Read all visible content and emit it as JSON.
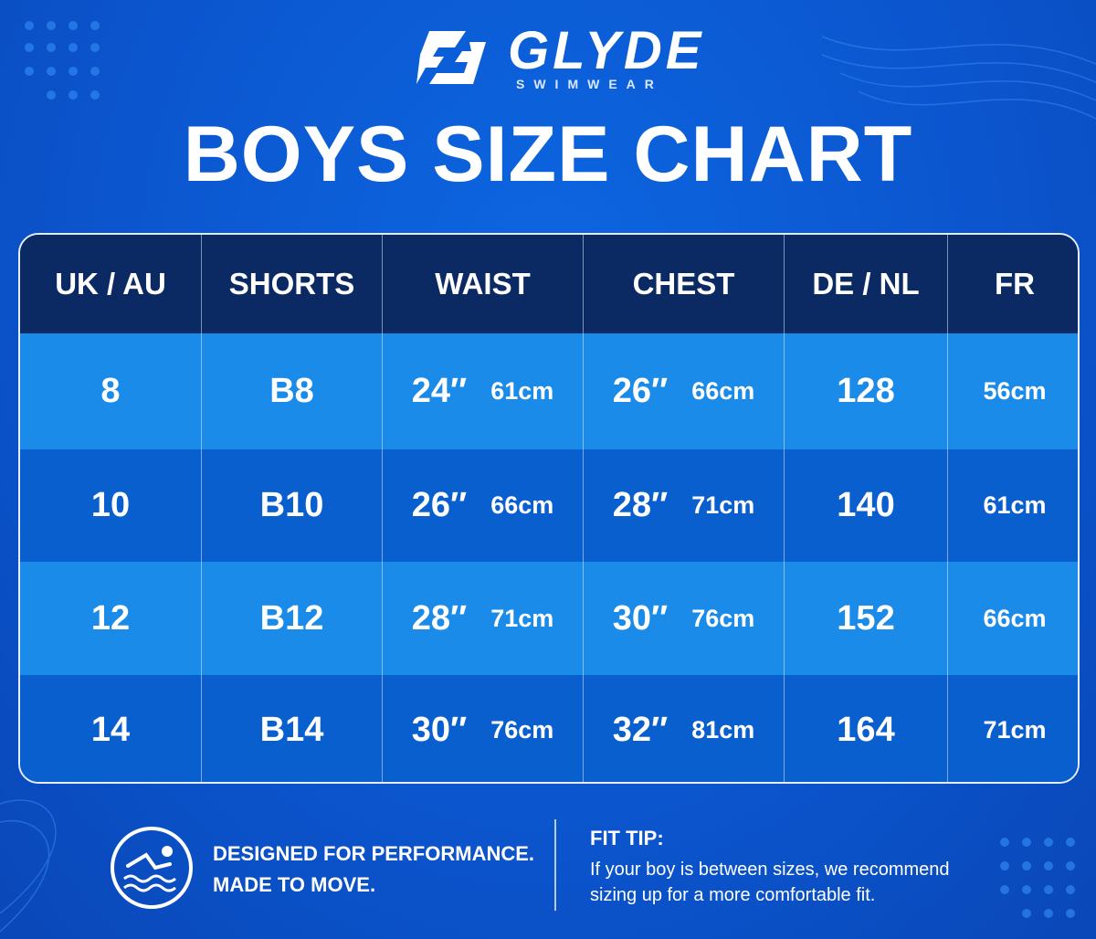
{
  "brand": {
    "name": "GLYDE",
    "tagline": "SWIMWEAR"
  },
  "title": "BOYS SIZE CHART",
  "table": {
    "headers": [
      "UK / AU",
      "SHORTS",
      "WAIST",
      "CHEST",
      "DE / NL",
      "FR"
    ],
    "rows": [
      [
        "8",
        "B8",
        [
          "24″",
          "61cm"
        ],
        [
          "26″",
          "66cm"
        ],
        "128",
        "56cm"
      ],
      [
        "10",
        "B10",
        [
          "26″",
          "66cm"
        ],
        [
          "28″",
          "71cm"
        ],
        "140",
        "61cm"
      ],
      [
        "12",
        "B12",
        [
          "28″",
          "71cm"
        ],
        [
          "30″",
          "76cm"
        ],
        "152",
        "66cm"
      ],
      [
        "14",
        "B14",
        [
          "30″",
          "76cm"
        ],
        [
          "32″",
          "81cm"
        ],
        "164",
        "71cm"
      ]
    ]
  },
  "footer": {
    "slogan": [
      "DESIGNED FOR PERFORMANCE.",
      "MADE TO MOVE."
    ],
    "tip_title": "FIT TIP:",
    "tip_text": [
      "If your boy is between sizes, we recommend",
      "sizing up for a more comfortable fit."
    ]
  }
}
